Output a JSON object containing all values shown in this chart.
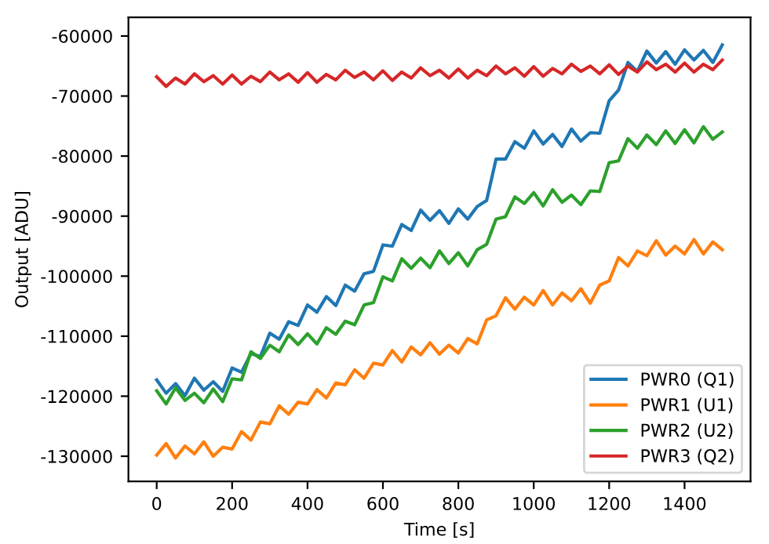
{
  "chart_data": {
    "type": "line",
    "xlabel": "Time [s]",
    "ylabel": "Output [ADU]",
    "x": [
      0,
      25,
      50,
      75,
      100,
      125,
      150,
      175,
      200,
      225,
      250,
      275,
      300,
      325,
      350,
      375,
      400,
      425,
      450,
      475,
      500,
      525,
      550,
      575,
      600,
      625,
      650,
      675,
      700,
      725,
      750,
      775,
      800,
      825,
      850,
      875,
      900,
      925,
      950,
      975,
      1000,
      1025,
      1050,
      1075,
      1100,
      1125,
      1150,
      1175,
      1200,
      1225,
      1250,
      1275,
      1300,
      1325,
      1350,
      1375,
      1400,
      1425,
      1450,
      1475,
      1500
    ],
    "series": [
      {
        "name": "PWR0 (Q1)",
        "color": "#1f77b4",
        "values": [
          -117300,
          -119500,
          -117900,
          -119900,
          -117000,
          -119000,
          -117600,
          -119200,
          -115300,
          -116000,
          -112900,
          -113400,
          -109500,
          -110500,
          -107600,
          -108200,
          -104800,
          -106000,
          -103400,
          -104900,
          -101500,
          -102500,
          -99600,
          -99200,
          -94800,
          -95000,
          -91400,
          -92400,
          -89000,
          -90700,
          -89100,
          -91200,
          -88800,
          -90500,
          -88400,
          -87400,
          -80500,
          -80500,
          -77600,
          -78700,
          -75800,
          -78000,
          -76400,
          -78400,
          -75500,
          -77500,
          -76100,
          -76200,
          -70800,
          -69000,
          -64400,
          -65900,
          -62500,
          -64500,
          -62600,
          -64700,
          -62300,
          -64000,
          -62400,
          -64400,
          -61500
        ]
      },
      {
        "name": "PWR1 (U1)",
        "color": "#ff7f0e",
        "values": [
          -129800,
          -127900,
          -130300,
          -128300,
          -129600,
          -127600,
          -130000,
          -128500,
          -128800,
          -125900,
          -127300,
          -124300,
          -124600,
          -121600,
          -123000,
          -121000,
          -121300,
          -118900,
          -120300,
          -117800,
          -118100,
          -115600,
          -117000,
          -114500,
          -114800,
          -112400,
          -114300,
          -111800,
          -113100,
          -111100,
          -113000,
          -111500,
          -112800,
          -110400,
          -111300,
          -107300,
          -106600,
          -103600,
          -105500,
          -103500,
          -104800,
          -102400,
          -104800,
          -102800,
          -104100,
          -102100,
          -104500,
          -101500,
          -100800,
          -96900,
          -98300,
          -95800,
          -96600,
          -94100,
          -96500,
          -95000,
          -96300,
          -93900,
          -96300,
          -94300,
          -95600
        ]
      },
      {
        "name": "PWR2 (U2)",
        "color": "#2ca02c",
        "values": [
          -119100,
          -121300,
          -118600,
          -120700,
          -119500,
          -121100,
          -118800,
          -120900,
          -117100,
          -117300,
          -112600,
          -113700,
          -111500,
          -112600,
          -109800,
          -111400,
          -109600,
          -111300,
          -108600,
          -109700,
          -107500,
          -108100,
          -104800,
          -104400,
          -100100,
          -100800,
          -97100,
          -98700,
          -97000,
          -98600,
          -95800,
          -97900,
          -96100,
          -98300,
          -95600,
          -94700,
          -90500,
          -90100,
          -86800,
          -87900,
          -86100,
          -88300,
          -85600,
          -87700,
          -86500,
          -88100,
          -85800,
          -85900,
          -81100,
          -80800,
          -77100,
          -78700,
          -76500,
          -78100,
          -75800,
          -77900,
          -75600,
          -77800,
          -75100,
          -77200,
          -76000
        ]
      },
      {
        "name": "PWR3 (Q2)",
        "color": "#d62728",
        "values": [
          -66800,
          -68400,
          -67000,
          -68000,
          -66300,
          -67600,
          -66600,
          -68000,
          -66500,
          -68000,
          -66700,
          -67600,
          -66000,
          -67300,
          -66300,
          -67700,
          -66100,
          -67700,
          -66400,
          -67300,
          -65700,
          -66900,
          -66000,
          -67300,
          -65800,
          -67400,
          -66000,
          -67000,
          -65300,
          -66600,
          -65700,
          -67000,
          -65500,
          -67000,
          -65700,
          -66600,
          -65000,
          -66300,
          -65300,
          -66700,
          -65100,
          -66700,
          -65400,
          -66300,
          -64700,
          -65900,
          -65000,
          -66300,
          -64800,
          -66400,
          -65000,
          -66000,
          -64300,
          -65600,
          -64700,
          -66000,
          -64500,
          -66000,
          -64700,
          -65600,
          -64000
        ]
      }
    ],
    "xlim": [
      -75,
      1575
    ],
    "ylim": [
      -134200,
      -56900
    ],
    "xticks": [
      0,
      200,
      400,
      600,
      800,
      1000,
      1200,
      1400
    ],
    "yticks": [
      -130000,
      -120000,
      -110000,
      -100000,
      -90000,
      -80000,
      -70000,
      -60000
    ],
    "legend": "lower right",
    "grid": false
  }
}
